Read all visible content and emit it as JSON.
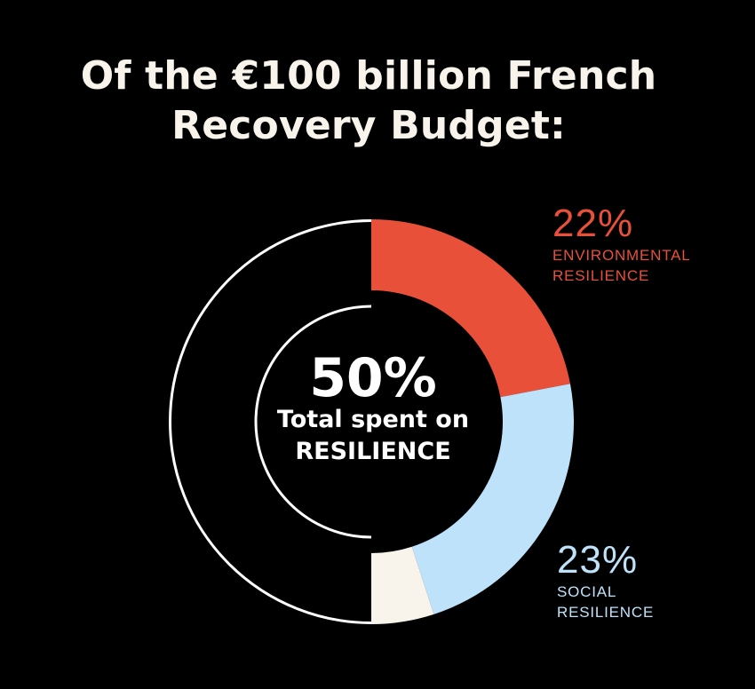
{
  "title": {
    "line1": "Of the €100 billion French",
    "line2": "Recovery Budget:"
  },
  "center": {
    "percent": "50%",
    "line1": "Total spent on",
    "line2": "RESILIENCE"
  },
  "callouts": {
    "environmental": {
      "percent": "22%",
      "line1": "ENVIRONMENTAL",
      "line2": "RESILIENCE"
    },
    "social": {
      "percent": "23%",
      "line1": "SOCIAL",
      "line2": "RESILIENCE"
    }
  },
  "chart_data": {
    "type": "pie",
    "title": "Of the €100 billion French Recovery Budget:",
    "total_label": "50% Total spent on RESILIENCE",
    "slices": [
      {
        "name": "ENVIRONMENTAL RESILIENCE",
        "value": 22,
        "color": "#e8503a"
      },
      {
        "name": "SOCIAL RESILIENCE",
        "value": 23,
        "color": "#bfe2fb"
      },
      {
        "name": "",
        "value": 5,
        "color": "#f8f4ec"
      }
    ],
    "remainder": {
      "value": 50,
      "color": "#000000",
      "outline": "#ffffff"
    },
    "center_outline": {
      "value": 50,
      "color": "#ffffff"
    }
  }
}
